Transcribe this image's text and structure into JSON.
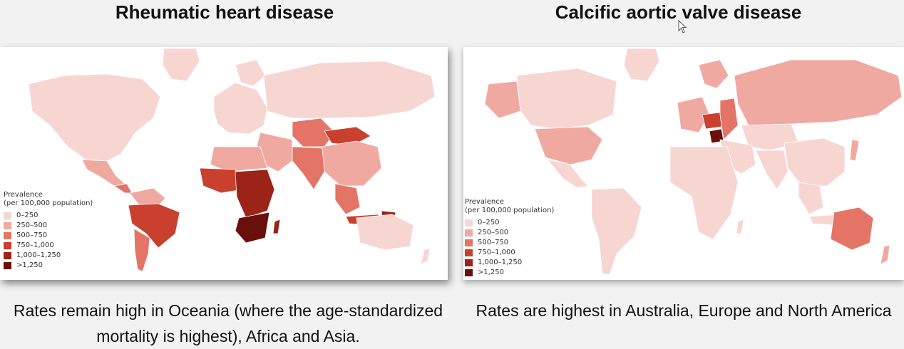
{
  "left_panel": {
    "title": "Rheumatic heart disease",
    "caption": "Rates remain high in Oceania (where the age-standardized mortality is highest), Africa and Asia.",
    "legend": {
      "title_line1": "Prevalence",
      "title_line2": "(per 100,000 population)",
      "items": [
        {
          "label": "0–250",
          "color": "#f7d6d2"
        },
        {
          "label": "250–500",
          "color": "#f0a9a1"
        },
        {
          "label": "500–750",
          "color": "#e37466"
        },
        {
          "label": "750–1,000",
          "color": "#c9402f"
        },
        {
          "label": "1,000–1,250",
          "color": "#9b2318"
        },
        {
          "label": ">1,250",
          "color": "#6b0f0a"
        }
      ]
    }
  },
  "right_panel": {
    "title": "Calcific aortic valve disease",
    "caption": "Rates are highest in Australia, Europe and North America",
    "legend": {
      "title_line1": "Prevalence",
      "title_line2": "(per 100,000 population)",
      "items": [
        {
          "label": "0–250",
          "color": "#f7d6d2"
        },
        {
          "label": "250–500",
          "color": "#f0a9a1"
        },
        {
          "label": "500–750",
          "color": "#e37466"
        },
        {
          "label": "750–1,000",
          "color": "#c9402f"
        },
        {
          "label": "1,000–1,250",
          "color": "#9b2318"
        },
        {
          "label": ">1,250",
          "color": "#6b0f0a"
        }
      ]
    }
  }
}
